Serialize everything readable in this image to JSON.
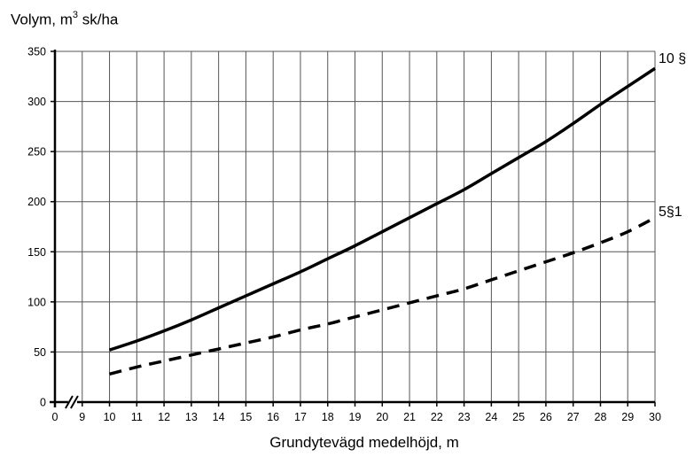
{
  "chart_data": {
    "type": "line",
    "title": "",
    "ylabel_prefix": "Volym, m",
    "ylabel_sup": "3",
    "ylabel_suffix": " sk/ha",
    "xlabel": "Grundytevägd medelhöjd, m",
    "xlim": [
      8,
      30
    ],
    "ylim": [
      0,
      350
    ],
    "x_axis_break": true,
    "grid": true,
    "x_tick_labels": [
      "0",
      "9",
      "10",
      "11",
      "12",
      "13",
      "14",
      "15",
      "16",
      "17",
      "18",
      "19",
      "20",
      "21",
      "22",
      "23",
      "24",
      "25",
      "26",
      "27",
      "28",
      "29",
      "30"
    ],
    "y_tick_labels": [
      "0",
      "50",
      "100",
      "150",
      "200",
      "250",
      "300",
      "350"
    ],
    "series": [
      {
        "name": "10 §",
        "style": "solid",
        "color": "#000000",
        "x": [
          10,
          11,
          12,
          13,
          14,
          15,
          16,
          17,
          18,
          19,
          20,
          21,
          22,
          23,
          24,
          25,
          26,
          27,
          28,
          29,
          30
        ],
        "y": [
          52,
          61,
          71,
          82,
          94,
          106,
          118,
          130,
          143,
          156,
          170,
          184,
          198,
          212,
          228,
          244,
          260,
          278,
          297,
          315,
          333
        ]
      },
      {
        "name": "5§1",
        "style": "dashed",
        "color": "#000000",
        "x": [
          10,
          11,
          12,
          13,
          14,
          15,
          16,
          17,
          18,
          19,
          20,
          21,
          22,
          23,
          24,
          25,
          26,
          27,
          28,
          29,
          30
        ],
        "y": [
          28,
          35,
          41,
          47,
          53,
          59,
          65,
          72,
          78,
          85,
          92,
          99,
          106,
          113,
          122,
          131,
          140,
          149,
          159,
          170,
          184
        ]
      }
    ]
  }
}
